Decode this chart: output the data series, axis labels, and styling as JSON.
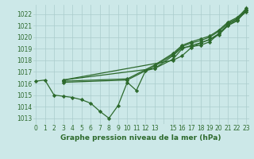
{
  "title": "Graphe pression niveau de la mer (hPa)",
  "bg_color": "#cce8e8",
  "grid_color": "#aacccc",
  "line_color": "#2d6a2d",
  "ylim": [
    1012.5,
    1022.8
  ],
  "yticks": [
    1013,
    1014,
    1015,
    1016,
    1017,
    1018,
    1019,
    1020,
    1021,
    1022
  ],
  "xtick_labels": [
    "0",
    "1",
    "2",
    "3",
    "4",
    "5",
    "6",
    "7",
    "8",
    "9",
    "10",
    "11",
    "12",
    "13",
    "",
    "15",
    "16",
    "17",
    "18",
    "19",
    "20",
    "21",
    "22",
    "23"
  ],
  "xtick_pos": [
    0,
    1,
    2,
    3,
    4,
    5,
    6,
    7,
    8,
    9,
    10,
    11,
    12,
    13,
    14,
    15,
    16,
    17,
    18,
    19,
    20,
    21,
    22,
    23
  ],
  "xlim": [
    -0.3,
    23.3
  ],
  "lines": [
    {
      "x": [
        0,
        1,
        2,
        3,
        4,
        5,
        6,
        7,
        8,
        9,
        10,
        11,
        12,
        13,
        15,
        16,
        17,
        18,
        19,
        20,
        21,
        22,
        23
      ],
      "y": [
        1016.2,
        1016.3,
        1015.0,
        1014.9,
        1014.8,
        1014.6,
        1014.3,
        1013.6,
        1013.0,
        1014.1,
        1016.1,
        1015.4,
        1017.1,
        1017.3,
        1018.4,
        1019.1,
        1019.2,
        1019.3,
        1019.6,
        1020.3,
        1021.0,
        1021.4,
        1022.3
      ]
    },
    {
      "x": [
        3,
        10,
        13,
        15,
        16,
        17,
        18,
        19,
        20,
        21,
        22,
        23
      ],
      "y": [
        1016.1,
        1016.3,
        1017.5,
        1018.5,
        1019.2,
        1019.5,
        1019.7,
        1020.0,
        1020.5,
        1021.2,
        1021.6,
        1022.3
      ]
    },
    {
      "x": [
        3,
        10,
        13,
        15,
        16,
        17,
        18,
        19,
        20,
        21,
        22,
        23
      ],
      "y": [
        1016.2,
        1016.4,
        1017.6,
        1018.6,
        1019.3,
        1019.6,
        1019.85,
        1020.1,
        1020.6,
        1021.3,
        1021.7,
        1022.4
      ]
    },
    {
      "x": [
        3,
        13,
        15,
        16,
        17,
        18,
        19,
        20,
        21,
        22,
        23
      ],
      "y": [
        1016.3,
        1017.3,
        1018.1,
        1019.0,
        1019.3,
        1019.5,
        1019.8,
        1020.2,
        1021.0,
        1021.5,
        1022.2
      ]
    },
    {
      "x": [
        3,
        15,
        16,
        17,
        18,
        19,
        20,
        21,
        22,
        23
      ],
      "y": [
        1016.3,
        1018.0,
        1018.4,
        1019.1,
        1019.5,
        1019.8,
        1020.3,
        1021.1,
        1021.6,
        1022.5
      ]
    }
  ],
  "marker": "D",
  "markersize": 2.2,
  "linewidth": 0.9,
  "font_color": "#2d6a2d",
  "tick_fontsize": 5.5,
  "label_fontsize": 6.5
}
